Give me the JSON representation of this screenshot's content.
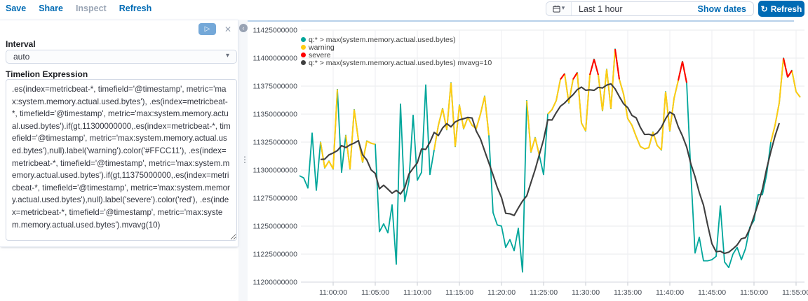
{
  "toolbar": {
    "save": "Save",
    "share": "Share",
    "inspect": "Inspect",
    "refresh": "Refresh"
  },
  "time_picker": {
    "calendar_icon": "calendar",
    "value": "Last 1 hour",
    "show_dates": "Show dates",
    "refresh_button": "Refresh",
    "refresh_icon_glyph": "↻",
    "accent_color": "#006BB4"
  },
  "editor": {
    "play_icon": "▷",
    "close_icon": "✕",
    "collapse_icon": "‹",
    "drag_handle_icon": "⋮",
    "interval_label": "Interval",
    "interval_value": "auto",
    "expression_label": "Timelion Expression",
    "expression": ".es(index=metricbeat-*, timefield='@timestamp', metric='max:system.memory.actual.used.bytes'), .es(index=metricbeat-*, timefield='@timestamp', metric='max:system.memory.actual.used.bytes').if(gt,11300000000,.es(index=metricbeat-*, timefield='@timestamp', metric='max:system.memory.actual.used.bytes'),null).label('warning').color('#FFCC11'), .es(index=metricbeat-*, timefield='@timestamp', metric='max:system.memory.actual.used.bytes').if(gt,11375000000,.es(index=metricbeat-*, timefield='@timestamp', metric='max:system.memory.actual.used.bytes'),null).label('severe').color('red'), .es(index=metricbeat-*, timefield='@timestamp', metric='max:system.memory.actual.used.bytes').mvavg(10)"
  },
  "chart_data": {
    "type": "line",
    "value_unit": "bytes",
    "value_divisor_note": "values below are bytes / 1e6",
    "start_time": "10:56:00",
    "interval_seconds": 30,
    "ylim": [
      11200000000,
      11425000000
    ],
    "grid": true,
    "legend_position": "top-left",
    "y_tick_labels": [
      "11425000000",
      "11400000000",
      "11375000000",
      "11350000000",
      "11325000000",
      "11300000000",
      "11275000000",
      "11250000000",
      "11225000000",
      "11200000000"
    ],
    "x_tick_labels": [
      "11:00:00",
      "11:05:00",
      "11:10:00",
      "11:15:00",
      "11:20:00",
      "11:25:00",
      "11:30:00",
      "11:35:00",
      "11:40:00",
      "11:45:00",
      "11:50:00",
      "11:55:00"
    ],
    "series": [
      {
        "name": "q:* > max(system.memory.actual.used.bytes)",
        "color": "#00A69B",
        "values": [
          11295,
          11293,
          11284,
          11333,
          11282,
          11325,
          11302,
          11308,
          11301,
          11372,
          11298,
          11331,
          11301,
          11354,
          11327,
          11307,
          11326,
          11324,
          11323,
          11245,
          11252,
          11244,
          11269,
          11216,
          11359,
          11272,
          11290,
          11349,
          11291,
          11298,
          11376,
          11296,
          11318,
          11340,
          11355,
          11336,
          11378,
          11321,
          11358,
          11337,
          11347,
          11340,
          11337,
          11350,
          11366,
          11331,
          11262,
          11251,
          11250,
          11231,
          11238,
          11228,
          11248,
          11209,
          11362,
          11316,
          11329,
          11313,
          11296,
          11350,
          11354,
          11362,
          11381,
          11386,
          11360,
          11381,
          11387,
          11342,
          11335,
          11385,
          11399,
          11385,
          11353,
          11390,
          11355,
          11408,
          11381,
          11368,
          11346,
          11340,
          11330,
          11321,
          11319,
          11320,
          11334,
          11322,
          11318,
          11370,
          11335,
          11364,
          11380,
          11397,
          11378,
          11297,
          11226,
          11240,
          11219,
          11219,
          11220,
          11223,
          11268,
          11218,
          11213,
          11225,
          11231,
          11220,
          11230,
          11249,
          11255,
          11278,
          11278,
          11296,
          11325,
          11340,
          11360,
          11400,
          11383,
          11389,
          11370,
          11365
        ]
      },
      {
        "name": "warning",
        "color": "#FFCC11",
        "derived_from": 0,
        "rule": "value > threshold",
        "threshold": 11300
      },
      {
        "name": "severe",
        "color": "#FF0000",
        "derived_from": 0,
        "rule": "value > threshold",
        "threshold": 11375
      },
      {
        "name": "q:* > max(system.memory.actual.used.bytes) mvavg=10",
        "color": "#3F3F3F",
        "derived_from": 0,
        "rule": "centered moving average",
        "window": 10
      }
    ]
  }
}
